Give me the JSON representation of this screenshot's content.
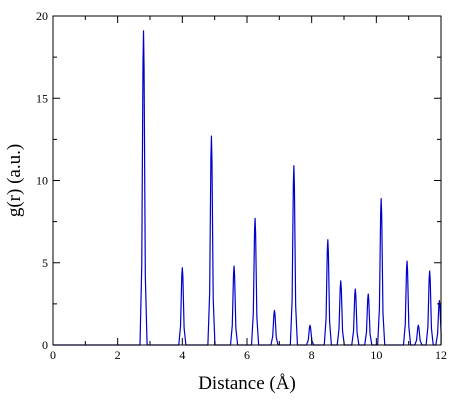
{
  "chart_data": {
    "type": "line",
    "title": "",
    "xlabel": "Distance (Å)",
    "ylabel": "g(r) (a.u.)",
    "xlim": [
      0,
      12
    ],
    "ylim": [
      0,
      20
    ],
    "x_ticks": [
      0,
      2,
      4,
      6,
      8,
      10,
      12
    ],
    "y_ticks": [
      0,
      5,
      10,
      15,
      20
    ],
    "grid": false,
    "legend": "none",
    "series": [
      {
        "color": "#0000cc",
        "peaks": [
          {
            "x": 2.8,
            "y": 19.1
          },
          {
            "x": 4.0,
            "y": 4.7
          },
          {
            "x": 4.9,
            "y": 12.7
          },
          {
            "x": 5.6,
            "y": 4.8
          },
          {
            "x": 6.25,
            "y": 7.7
          },
          {
            "x": 6.85,
            "y": 2.1
          },
          {
            "x": 7.45,
            "y": 10.9
          },
          {
            "x": 7.95,
            "y": 1.2
          },
          {
            "x": 8.5,
            "y": 6.4
          },
          {
            "x": 8.9,
            "y": 3.9
          },
          {
            "x": 9.35,
            "y": 3.4
          },
          {
            "x": 9.75,
            "y": 3.1
          },
          {
            "x": 10.15,
            "y": 8.9
          },
          {
            "x": 10.95,
            "y": 5.1
          },
          {
            "x": 11.3,
            "y": 1.2
          },
          {
            "x": 11.65,
            "y": 4.5
          },
          {
            "x": 11.95,
            "y": 2.7
          }
        ]
      }
    ]
  }
}
